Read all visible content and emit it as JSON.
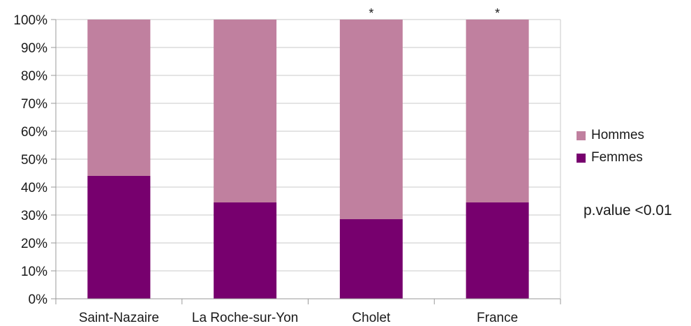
{
  "chart_data": {
    "type": "bar",
    "stacked": true,
    "categories": [
      "Saint-Nazaire",
      "La Roche-sur-Yon",
      "Cholet",
      "France"
    ],
    "series": [
      {
        "name": "Femmes",
        "values": [
          44,
          34.5,
          28.5,
          34.5
        ],
        "color": "#77006e"
      },
      {
        "name": "Hommes",
        "values": [
          56,
          65.5,
          71.5,
          65.5
        ],
        "color": "#c0809f"
      }
    ],
    "markers": [
      "",
      "",
      "*",
      "*"
    ],
    "title": "",
    "xlabel": "",
    "ylabel": "",
    "ylim": [
      0,
      100
    ],
    "yticks": [
      "0%",
      "10%",
      "20%",
      "30%",
      "40%",
      "50%",
      "60%",
      "70%",
      "80%",
      "90%",
      "100%"
    ],
    "grid": true,
    "legend": {
      "placement": "right",
      "entries": [
        {
          "label": "Hommes",
          "color": "#c0809f"
        },
        {
          "label": "Femmes",
          "color": "#77006e"
        }
      ]
    },
    "annotation": "p.value <0.01"
  }
}
